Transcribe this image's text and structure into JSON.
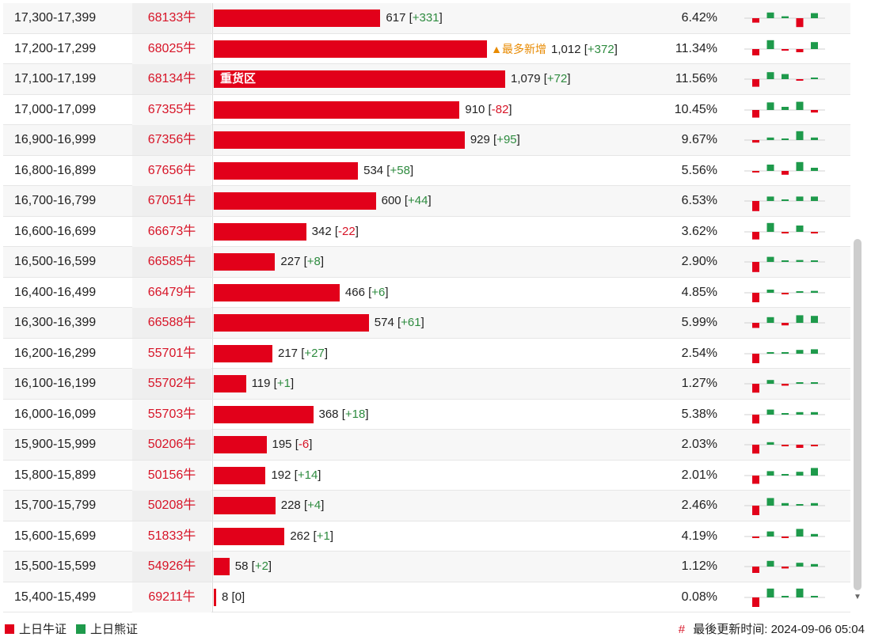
{
  "colors": {
    "bull": "#e2001a",
    "bear": "#1e9a4b",
    "code": "#d71427",
    "plus": "#2e8b3f",
    "tag": "#e88a00"
  },
  "rows": [
    {
      "range": "17,300-17,399",
      "code": "68133牛",
      "count": 617,
      "change": "+331",
      "pct": "6.42%",
      "spark": [
        -0.35,
        0.45,
        0.15,
        -0.7,
        0.4
      ]
    },
    {
      "range": "17,200-17,299",
      "code": "68025牛",
      "count": 1012,
      "change": "+372",
      "pct": "11.34%",
      "tag": "▲最多新增",
      "spark": [
        -0.5,
        0.7,
        -0.05,
        -0.25,
        0.55
      ]
    },
    {
      "range": "17,100-17,199",
      "code": "68134牛",
      "count": 1079,
      "change": "+72",
      "pct": "11.56%",
      "heavy": "重货区",
      "spark": [
        -0.6,
        0.55,
        0.4,
        -0.1,
        0.1
      ]
    },
    {
      "range": "17,000-17,099",
      "code": "67355牛",
      "count": 910,
      "change": "-82",
      "pct": "10.45%",
      "spark": [
        -0.6,
        0.6,
        0.25,
        0.65,
        -0.2
      ]
    },
    {
      "range": "16,900-16,999",
      "code": "67356牛",
      "count": 929,
      "change": "+95",
      "pct": "9.67%",
      "spark": [
        -0.2,
        0.2,
        0.05,
        0.7,
        0.2
      ]
    },
    {
      "range": "16,800-16,899",
      "code": "67656牛",
      "count": 534,
      "change": "+58",
      "pct": "5.56%",
      "spark": [
        -0.05,
        0.5,
        -0.3,
        0.7,
        0.25
      ]
    },
    {
      "range": "16,700-16,799",
      "code": "67051牛",
      "count": 600,
      "change": "+44",
      "pct": "6.53%",
      "spark": [
        -0.8,
        0.35,
        0.05,
        0.35,
        0.35
      ]
    },
    {
      "range": "16,600-16,699",
      "code": "66673牛",
      "count": 342,
      "change": "-22",
      "pct": "3.62%",
      "spark": [
        -0.6,
        0.7,
        -0.05,
        0.5,
        -0.05
      ]
    },
    {
      "range": "16,500-16,599",
      "code": "66585牛",
      "count": 227,
      "change": "+8",
      "pct": "2.90%",
      "spark": [
        -0.8,
        0.4,
        0.05,
        0.15,
        0.05
      ]
    },
    {
      "range": "16,400-16,499",
      "code": "66479牛",
      "count": 466,
      "change": "+6",
      "pct": "4.85%",
      "spark": [
        -0.75,
        0.25,
        -0.05,
        0,
        0.15
      ]
    },
    {
      "range": "16,300-16,399",
      "code": "66588牛",
      "count": 574,
      "change": "+61",
      "pct": "5.99%",
      "spark": [
        -0.4,
        0.45,
        -0.2,
        0.6,
        0.55
      ]
    },
    {
      "range": "16,200-16,299",
      "code": "55701牛",
      "count": 217,
      "change": "+27",
      "pct": "2.54%",
      "spark": [
        -0.75,
        0.05,
        0.1,
        0.3,
        0.35
      ]
    },
    {
      "range": "16,100-16,199",
      "code": "55702牛",
      "count": 119,
      "change": "+1",
      "pct": "1.27%",
      "spark": [
        -0.7,
        0.3,
        -0.15,
        0.1,
        0
      ]
    },
    {
      "range": "16,000-16,099",
      "code": "55703牛",
      "count": 368,
      "change": "+18",
      "pct": "5.38%",
      "spark": [
        -0.7,
        0.4,
        0.05,
        0.2,
        0.2
      ]
    },
    {
      "range": "15,900-15,999",
      "code": "50206牛",
      "count": 195,
      "change": "-6",
      "pct": "2.03%",
      "spark": [
        -0.7,
        0.2,
        -0.05,
        -0.25,
        -0.05
      ]
    },
    {
      "range": "15,800-15,899",
      "code": "50156牛",
      "count": 192,
      "change": "+14",
      "pct": "2.01%",
      "spark": [
        -0.65,
        0.35,
        0,
        0.3,
        0.6
      ]
    },
    {
      "range": "15,700-15,799",
      "code": "50208牛",
      "count": 228,
      "change": "+4",
      "pct": "2.46%",
      "spark": [
        -0.75,
        0.6,
        0.2,
        0.1,
        0.2
      ]
    },
    {
      "range": "15,600-15,699",
      "code": "51833牛",
      "count": 262,
      "change": "+1",
      "pct": "4.19%",
      "spark": [
        -0.1,
        0.4,
        -0.1,
        0.6,
        0.2
      ]
    },
    {
      "range": "15,500-15,599",
      "code": "54926牛",
      "count": 58,
      "change": "+2",
      "pct": "1.12%",
      "spark": [
        -0.5,
        0.45,
        -0.15,
        0.3,
        0.2
      ]
    },
    {
      "range": "15,400-15,499",
      "code": "69211牛",
      "count": 8,
      "change": "0",
      "pct": "0.08%",
      "spark": [
        -0.75,
        0.7,
        0,
        0.7,
        0
      ]
    }
  ],
  "footer": {
    "bull_label": "上日牛证",
    "bear_label": "上日熊证",
    "hash": "#",
    "updated_label": "最後更新时间:",
    "updated_time": "2024-09-06 05:04"
  }
}
